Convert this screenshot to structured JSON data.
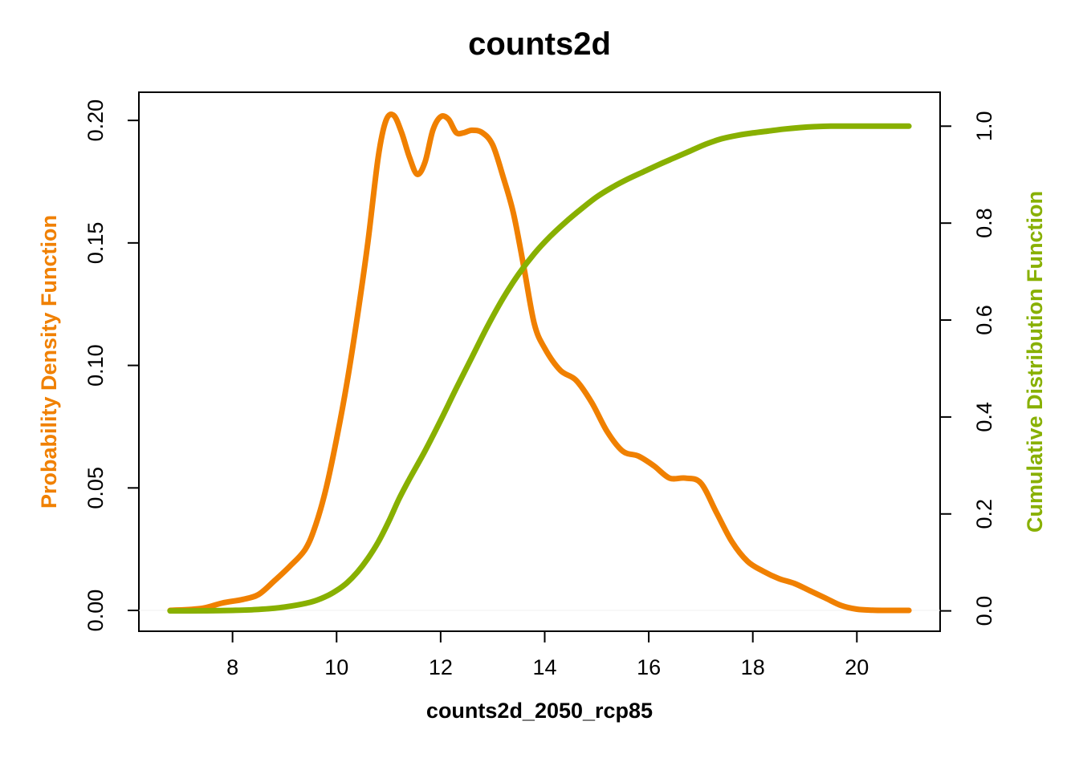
{
  "chart_data": {
    "type": "line",
    "title": "counts2d",
    "xlabel": "counts2d_2050_rcp85",
    "xlim": [
      6.2,
      21.6
    ],
    "x_ticks": [
      "8",
      "10",
      "12",
      "14",
      "16",
      "18",
      "20"
    ],
    "grid": false,
    "legend": "none",
    "y_left": {
      "label": "Probability Density Function",
      "color": "#f08000",
      "lim": [
        -0.0085,
        0.2115
      ],
      "ticks": [
        "0.00",
        "0.05",
        "0.10",
        "0.15",
        "0.20"
      ]
    },
    "y_right": {
      "label": "Cumulative Distribution Function",
      "color": "#88b000",
      "lim": [
        -0.042,
        1.07
      ],
      "ticks": [
        "0.0",
        "0.2",
        "0.4",
        "0.6",
        "0.8",
        "1.0"
      ]
    },
    "series": [
      {
        "color": "#f08000",
        "axis": "left",
        "x": [
          6.8,
          7.4,
          7.8,
          8.2,
          8.5,
          8.8,
          9.1,
          9.4,
          9.6,
          9.8,
          10.0,
          10.2,
          10.4,
          10.6,
          10.8,
          10.95,
          11.1,
          11.25,
          11.4,
          11.55,
          11.7,
          11.85,
          12.0,
          12.15,
          12.3,
          12.45,
          12.6,
          12.8,
          13.0,
          13.2,
          13.4,
          13.6,
          13.8,
          14.0,
          14.3,
          14.6,
          14.9,
          15.2,
          15.5,
          15.8,
          16.1,
          16.4,
          16.7,
          17.0,
          17.3,
          17.6,
          17.9,
          18.2,
          18.5,
          18.8,
          19.1,
          19.4,
          19.7,
          20.0,
          20.3,
          20.6,
          21.0
        ],
        "y": [
          0.0,
          0.0008,
          0.003,
          0.0045,
          0.0065,
          0.012,
          0.018,
          0.025,
          0.035,
          0.05,
          0.07,
          0.093,
          0.12,
          0.15,
          0.185,
          0.2,
          0.202,
          0.195,
          0.185,
          0.178,
          0.183,
          0.196,
          0.2015,
          0.2005,
          0.195,
          0.195,
          0.196,
          0.195,
          0.19,
          0.177,
          0.162,
          0.14,
          0.117,
          0.107,
          0.098,
          0.094,
          0.085,
          0.073,
          0.065,
          0.063,
          0.059,
          0.054,
          0.054,
          0.052,
          0.04,
          0.028,
          0.02,
          0.016,
          0.013,
          0.011,
          0.008,
          0.005,
          0.002,
          0.0005,
          0.0001,
          0.0,
          0.0
        ]
      },
      {
        "color": "#88b000",
        "axis": "right",
        "x": [
          6.8,
          7.5,
          8.0,
          8.5,
          9.0,
          9.5,
          9.8,
          10.0,
          10.2,
          10.4,
          10.6,
          10.8,
          11.0,
          11.2,
          11.4,
          11.7,
          12.0,
          12.3,
          12.6,
          12.9,
          13.2,
          13.5,
          13.8,
          14.1,
          14.4,
          14.7,
          15.0,
          15.3,
          15.6,
          15.9,
          16.2,
          16.5,
          16.8,
          17.1,
          17.4,
          17.7,
          18.0,
          18.3,
          18.6,
          18.9,
          19.2,
          19.5,
          19.8,
          20.1,
          20.5,
          21.0
        ],
        "y": [
          0.0,
          0.0002,
          0.001,
          0.003,
          0.008,
          0.018,
          0.03,
          0.042,
          0.058,
          0.08,
          0.108,
          0.142,
          0.184,
          0.231,
          0.272,
          0.33,
          0.393,
          0.459,
          0.523,
          0.587,
          0.645,
          0.695,
          0.737,
          0.772,
          0.802,
          0.829,
          0.854,
          0.874,
          0.891,
          0.906,
          0.921,
          0.935,
          0.949,
          0.963,
          0.974,
          0.981,
          0.986,
          0.99,
          0.994,
          0.997,
          0.999,
          1.0,
          1.0,
          1.0,
          1.0,
          1.0
        ]
      }
    ]
  }
}
